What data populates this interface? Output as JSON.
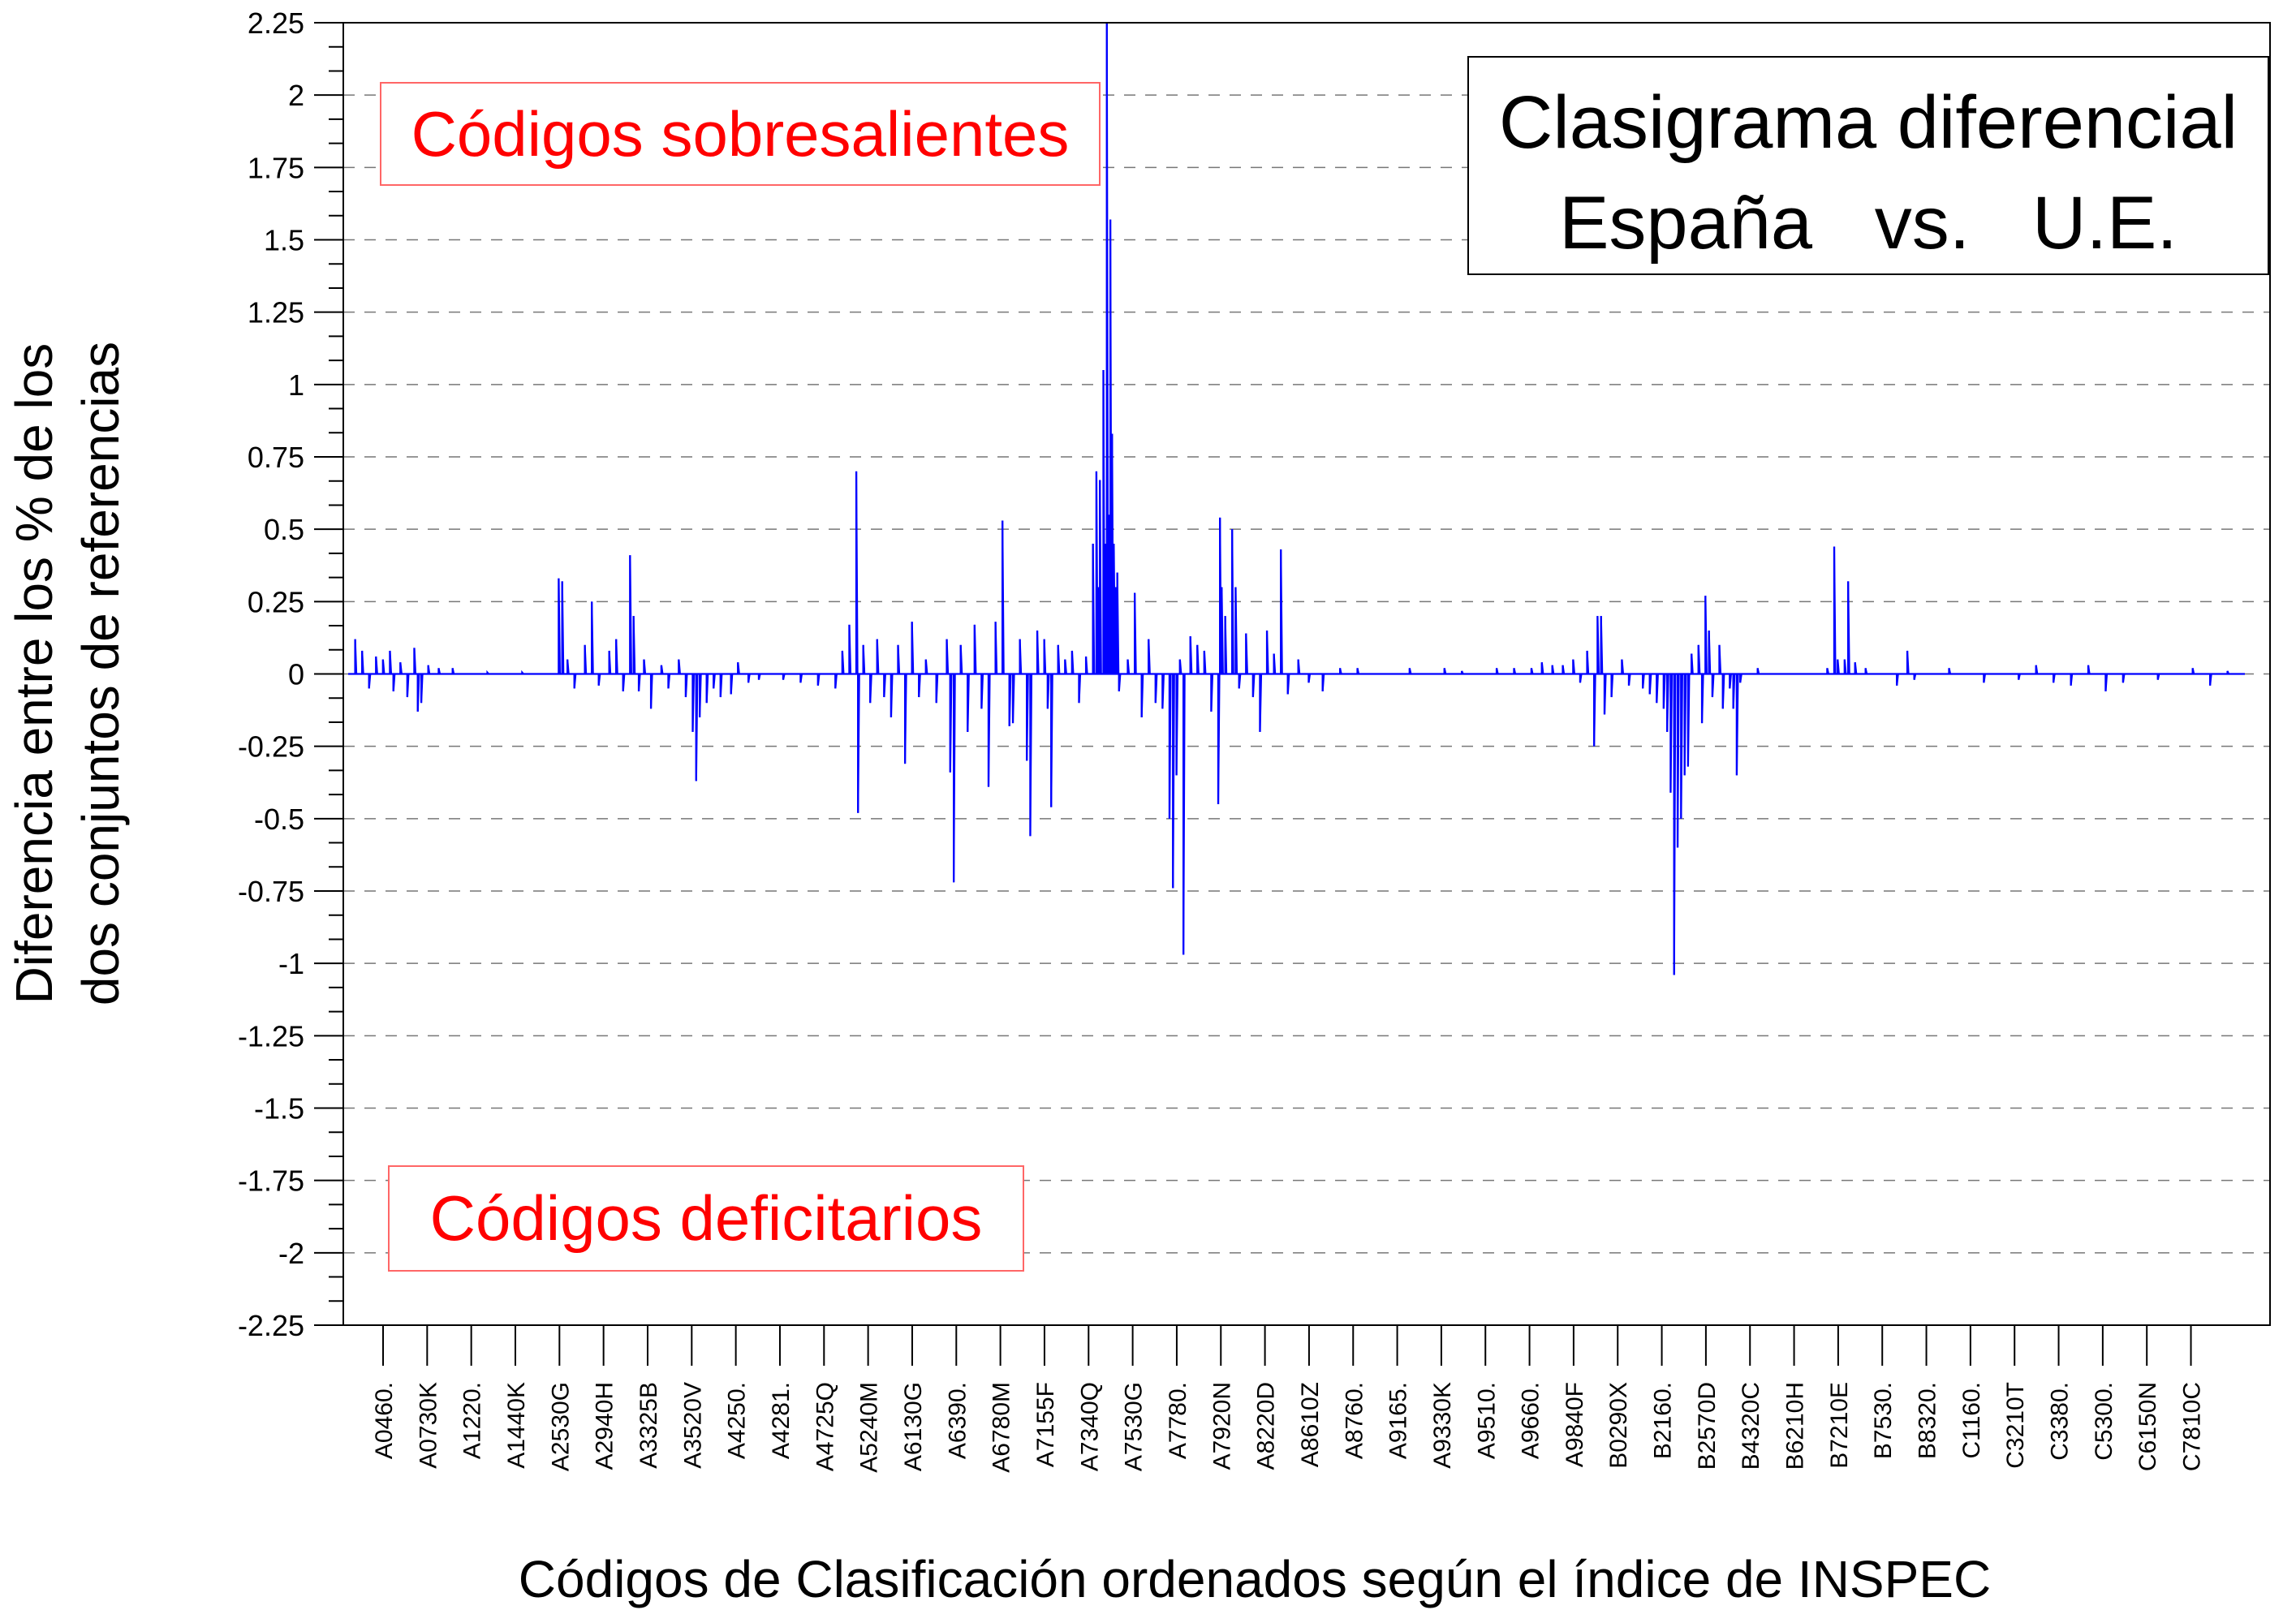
{
  "chart_data": {
    "type": "line",
    "title": [
      "Clasigrama diferencial",
      "España   vs.   U.E."
    ],
    "xlabel": "Códigos de Clasificación ordenados según el índice de INSPEC",
    "ylabel": [
      "Diferencia entre los % de los",
      "dos conjuntos de referencias"
    ],
    "annotations": [
      "Códigos sobresalientes",
      "Códigos deficitarios"
    ],
    "ylim": [
      -2.25,
      2.25
    ],
    "yticks": [
      "2.25",
      "2",
      "1.75",
      "1.5",
      "1.25",
      "1",
      "0.75",
      "0.5",
      "0.25",
      "0",
      "-0.25",
      "-0.5",
      "-0.75",
      "-1",
      "-1.25",
      "-1.5",
      "-1.75",
      "-2",
      "-2.25"
    ],
    "grid": "horizontal dashed",
    "categories": [
      "A0460.",
      "A0730K",
      "A1220.",
      "A1440K",
      "A2530G",
      "A2940H",
      "A3325B",
      "A3520V",
      "A4250.",
      "A4281.",
      "A4725Q",
      "A5240M",
      "A6130G",
      "A6390.",
      "A6780M",
      "A7155F",
      "A7340Q",
      "A7530G",
      "A7780.",
      "A7920N",
      "A8220D",
      "A8610Z",
      "A8760.",
      "A9165.",
      "A9330K",
      "A9510.",
      "A9660.",
      "A9840F",
      "B0290X",
      "B2160.",
      "B2570D",
      "B4320C",
      "B6210H",
      "B7210E",
      "B7530.",
      "B8320.",
      "C1160.",
      "C3210T",
      "C3380.",
      "C5300.",
      "C6150N",
      "C7810C"
    ],
    "x_range": [
      0,
      43
    ],
    "series": [
      {
        "color": "#0000ff",
        "spikes": [
          [
            0.2,
            0.12
          ],
          [
            0.4,
            0.08
          ],
          [
            0.6,
            -0.05
          ],
          [
            0.8,
            0.06
          ],
          [
            1.0,
            0.05
          ],
          [
            1.2,
            0.08
          ],
          [
            1.3,
            -0.06
          ],
          [
            1.5,
            0.04
          ],
          [
            1.7,
            -0.08
          ],
          [
            1.9,
            0.09
          ],
          [
            2.0,
            -0.13
          ],
          [
            2.1,
            -0.1
          ],
          [
            2.3,
            0.03
          ],
          [
            2.6,
            0.02
          ],
          [
            3.0,
            0.02
          ],
          [
            4.0,
            0.005
          ],
          [
            5.0,
            0.005
          ],
          [
            6.05,
            0.33
          ],
          [
            6.15,
            0.32
          ],
          [
            6.3,
            0.05
          ],
          [
            6.5,
            -0.05
          ],
          [
            6.8,
            0.1
          ],
          [
            7.0,
            0.25
          ],
          [
            7.2,
            -0.04
          ],
          [
            7.5,
            0.08
          ],
          [
            7.7,
            0.12
          ],
          [
            7.9,
            -0.06
          ],
          [
            8.1,
            0.41
          ],
          [
            8.2,
            0.2
          ],
          [
            8.35,
            -0.06
          ],
          [
            8.5,
            0.05
          ],
          [
            8.7,
            -0.12
          ],
          [
            9.0,
            0.03
          ],
          [
            9.2,
            -0.05
          ],
          [
            9.5,
            0.05
          ],
          [
            9.7,
            -0.08
          ],
          [
            9.9,
            -0.2
          ],
          [
            10.0,
            -0.37
          ],
          [
            10.1,
            -0.15
          ],
          [
            10.3,
            -0.1
          ],
          [
            10.5,
            -0.05
          ],
          [
            10.7,
            -0.08
          ],
          [
            11.0,
            -0.07
          ],
          [
            11.2,
            0.04
          ],
          [
            11.5,
            -0.03
          ],
          [
            11.8,
            -0.02
          ],
          [
            12.5,
            -0.02
          ],
          [
            13.0,
            -0.03
          ],
          [
            13.5,
            -0.04
          ],
          [
            14.0,
            -0.05
          ],
          [
            14.2,
            0.08
          ],
          [
            14.4,
            0.17
          ],
          [
            14.6,
            0.7
          ],
          [
            14.65,
            -0.48
          ],
          [
            14.8,
            0.1
          ],
          [
            15.0,
            -0.1
          ],
          [
            15.2,
            0.12
          ],
          [
            15.4,
            -0.08
          ],
          [
            15.6,
            -0.15
          ],
          [
            15.8,
            0.1
          ],
          [
            16.0,
            -0.31
          ],
          [
            16.2,
            0.18
          ],
          [
            16.4,
            -0.08
          ],
          [
            16.6,
            0.05
          ],
          [
            16.9,
            -0.1
          ],
          [
            17.2,
            0.12
          ],
          [
            17.3,
            -0.34
          ],
          [
            17.4,
            -0.72
          ],
          [
            17.6,
            0.1
          ],
          [
            17.8,
            -0.2
          ],
          [
            18.0,
            0.17
          ],
          [
            18.2,
            -0.12
          ],
          [
            18.4,
            -0.39
          ],
          [
            18.6,
            0.18
          ],
          [
            18.8,
            0.53
          ],
          [
            19.0,
            -0.18
          ],
          [
            19.1,
            -0.17
          ],
          [
            19.3,
            0.12
          ],
          [
            19.5,
            -0.3
          ],
          [
            19.6,
            -0.56
          ],
          [
            19.8,
            0.15
          ],
          [
            20.0,
            0.12
          ],
          [
            20.1,
            -0.12
          ],
          [
            20.2,
            -0.46
          ],
          [
            20.4,
            0.1
          ],
          [
            20.6,
            0.05
          ],
          [
            20.8,
            0.08
          ],
          [
            21.0,
            -0.1
          ],
          [
            21.2,
            0.06
          ],
          [
            21.4,
            0.45
          ],
          [
            21.5,
            0.7
          ],
          [
            21.55,
            0.3
          ],
          [
            21.6,
            0.67
          ],
          [
            21.7,
            1.05
          ],
          [
            21.75,
            0.45
          ],
          [
            21.8,
            2.25
          ],
          [
            21.85,
            0.55
          ],
          [
            21.9,
            1.57
          ],
          [
            21.95,
            0.83
          ],
          [
            22.0,
            0.45
          ],
          [
            22.05,
            0.3
          ],
          [
            22.1,
            0.35
          ],
          [
            22.15,
            -0.06
          ],
          [
            22.4,
            0.05
          ],
          [
            22.6,
            0.28
          ],
          [
            22.8,
            -0.15
          ],
          [
            23.0,
            0.12
          ],
          [
            23.2,
            -0.1
          ],
          [
            23.4,
            -0.12
          ],
          [
            23.6,
            -0.5
          ],
          [
            23.7,
            -0.74
          ],
          [
            23.8,
            -0.35
          ],
          [
            23.9,
            0.05
          ],
          [
            24.0,
            -0.97
          ],
          [
            24.2,
            0.13
          ],
          [
            24.4,
            0.1
          ],
          [
            24.6,
            0.08
          ],
          [
            24.8,
            -0.13
          ],
          [
            25.0,
            -0.45
          ],
          [
            25.05,
            0.54
          ],
          [
            25.1,
            0.3
          ],
          [
            25.2,
            0.2
          ],
          [
            25.4,
            0.5
          ],
          [
            25.5,
            0.3
          ],
          [
            25.6,
            -0.05
          ],
          [
            25.8,
            0.14
          ],
          [
            26.0,
            -0.08
          ],
          [
            26.2,
            -0.2
          ],
          [
            26.4,
            0.15
          ],
          [
            26.6,
            0.07
          ],
          [
            26.8,
            0.43
          ],
          [
            27.0,
            -0.07
          ],
          [
            27.3,
            0.05
          ],
          [
            27.6,
            -0.03
          ],
          [
            28.0,
            -0.06
          ],
          [
            28.5,
            0.02
          ],
          [
            29.0,
            0.02
          ],
          [
            30.5,
            0.02
          ],
          [
            31.5,
            0.02
          ],
          [
            32.0,
            0.01
          ],
          [
            33.0,
            0.02
          ],
          [
            33.5,
            0.02
          ],
          [
            34.0,
            0.02
          ],
          [
            34.3,
            0.04
          ],
          [
            34.6,
            0.03
          ],
          [
            34.9,
            0.03
          ],
          [
            35.2,
            0.05
          ],
          [
            35.4,
            -0.03
          ],
          [
            35.6,
            0.08
          ],
          [
            35.8,
            -0.25
          ],
          [
            35.9,
            0.2
          ],
          [
            36.0,
            0.2
          ],
          [
            36.1,
            -0.14
          ],
          [
            36.3,
            -0.08
          ],
          [
            36.6,
            0.05
          ],
          [
            36.8,
            -0.04
          ],
          [
            37.2,
            -0.05
          ],
          [
            37.4,
            -0.07
          ],
          [
            37.6,
            -0.1
          ],
          [
            37.8,
            -0.12
          ],
          [
            37.9,
            -0.2
          ],
          [
            38.0,
            -0.41
          ],
          [
            38.1,
            -1.04
          ],
          [
            38.2,
            -0.6
          ],
          [
            38.3,
            -0.5
          ],
          [
            38.4,
            -0.35
          ],
          [
            38.5,
            -0.32
          ],
          [
            38.6,
            0.07
          ],
          [
            38.8,
            0.1
          ],
          [
            38.9,
            -0.17
          ],
          [
            39.0,
            0.27
          ],
          [
            39.1,
            0.15
          ],
          [
            39.2,
            -0.08
          ],
          [
            39.4,
            0.1
          ],
          [
            39.5,
            -0.12
          ],
          [
            39.7,
            -0.05
          ],
          [
            39.8,
            -0.12
          ],
          [
            39.9,
            -0.35
          ],
          [
            40.0,
            -0.03
          ],
          [
            40.5,
            0.02
          ],
          [
            42.5,
            0.02
          ],
          [
            42.7,
            0.44
          ],
          [
            42.8,
            0.05
          ],
          [
            43.0,
            0.05
          ],
          [
            43.1,
            0.32
          ],
          [
            43.3,
            0.04
          ],
          [
            43.6,
            0.02
          ],
          [
            44.5,
            -0.04
          ],
          [
            44.8,
            0.08
          ],
          [
            45.0,
            -0.02
          ],
          [
            46.0,
            0.02
          ],
          [
            47.0,
            -0.03
          ],
          [
            48.0,
            -0.02
          ],
          [
            48.5,
            0.03
          ],
          [
            49.0,
            -0.03
          ],
          [
            49.5,
            -0.04
          ],
          [
            50.0,
            0.03
          ],
          [
            50.5,
            -0.06
          ],
          [
            51.0,
            -0.03
          ],
          [
            52.0,
            -0.02
          ],
          [
            53.0,
            0.02
          ],
          [
            53.5,
            -0.04
          ],
          [
            54.0,
            0.01
          ]
        ]
      }
    ]
  }
}
